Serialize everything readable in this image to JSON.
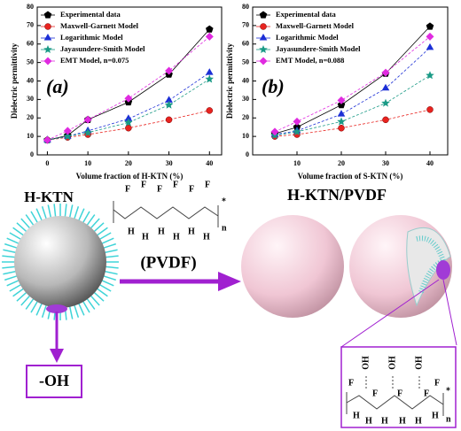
{
  "chart_data": [
    {
      "type": "line",
      "annotation": "(a)",
      "xlabel": "Volume fraction of H-KTN (%)",
      "ylabel": "Dielectric permittivity",
      "x": [
        0,
        5,
        10,
        20,
        30,
        40
      ],
      "xlim": [
        -2.5,
        43
      ],
      "xticks": [
        0,
        10,
        20,
        30,
        40
      ],
      "ylim": [
        0,
        80
      ],
      "yticks": [
        0,
        10,
        20,
        30,
        40,
        50,
        60,
        70,
        80
      ],
      "legend": "upper left",
      "series": [
        {
          "name": "Experimental data",
          "color": "#000000",
          "marker": "pentagon",
          "values": [
            8,
            10.5,
            19,
            28.5,
            43.5,
            68
          ]
        },
        {
          "name": "Maxwell-Garnett Model",
          "color": "#e8231f",
          "marker": "circle",
          "values": [
            8,
            9.5,
            11,
            14.5,
            19,
            24
          ]
        },
        {
          "name": "Logarithmic Model",
          "color": "#1c2fd6",
          "marker": "triangle",
          "values": [
            8,
            10,
            13,
            19.5,
            29.5,
            44.5
          ]
        },
        {
          "name": "Jayasundere-Smith Model",
          "color": "#1a9a86",
          "marker": "star",
          "values": [
            8,
            10,
            12,
            17.5,
            27,
            41
          ]
        },
        {
          "name": "EMT Model, n=0.075",
          "color": "#e02ae0",
          "marker": "diamond",
          "values": [
            8,
            13,
            19,
            30.5,
            45.5,
            64
          ]
        }
      ]
    },
    {
      "type": "line",
      "annotation": "(b)",
      "xlabel": "Volume fraction of S-KTN (%)",
      "ylabel": "Dielectric permittivity",
      "x": [
        5,
        10,
        20,
        30,
        40
      ],
      "xlim": [
        0,
        44
      ],
      "xticks": [
        10,
        20,
        30,
        40
      ],
      "ylim": [
        0,
        80
      ],
      "yticks": [
        0,
        10,
        20,
        30,
        40,
        50,
        60,
        70,
        80
      ],
      "legend": "upper left",
      "series": [
        {
          "name": "Experimental data",
          "color": "#000000",
          "marker": "pentagon",
          "values": [
            11.5,
            15,
            27,
            44,
            69.5
          ]
        },
        {
          "name": "Maxwell-Garnett Model",
          "color": "#e8231f",
          "marker": "circle",
          "values": [
            10,
            11,
            14.5,
            19,
            24.5
          ]
        },
        {
          "name": "Logarithmic Model",
          "color": "#1c2fd6",
          "marker": "triangle",
          "values": [
            11,
            13,
            22,
            36,
            58
          ]
        },
        {
          "name": "Jayasundere-Smith Model",
          "color": "#1a9a86",
          "marker": "star",
          "values": [
            10.5,
            12.5,
            18,
            28,
            43
          ]
        },
        {
          "name": "EMT Model, n=0.088",
          "color": "#e02ae0",
          "marker": "diamond",
          "values": [
            12.5,
            18,
            29.5,
            44.5,
            64
          ]
        }
      ]
    }
  ],
  "diagram": {
    "left_label": "H-KTN",
    "right_label": "H-KTN/PVDF",
    "arrow_label": "(PVDF)",
    "group_label": "-OH",
    "pvdf_top": [
      "F",
      "F",
      "F",
      "F",
      "F",
      "F"
    ],
    "pvdf_bottom": [
      "H",
      "H",
      "H",
      "H",
      "H",
      "H"
    ],
    "pvdf_n": "n",
    "pvdf_star": "*",
    "inset_oh": [
      "OH",
      "OH",
      "OH"
    ],
    "inset_top": [
      "F",
      "F",
      "F",
      "F",
      "F"
    ],
    "inset_bottom": [
      "H",
      "H",
      "H",
      "H",
      "H",
      "H"
    ],
    "inset_n": "n",
    "inset_star": "*"
  }
}
